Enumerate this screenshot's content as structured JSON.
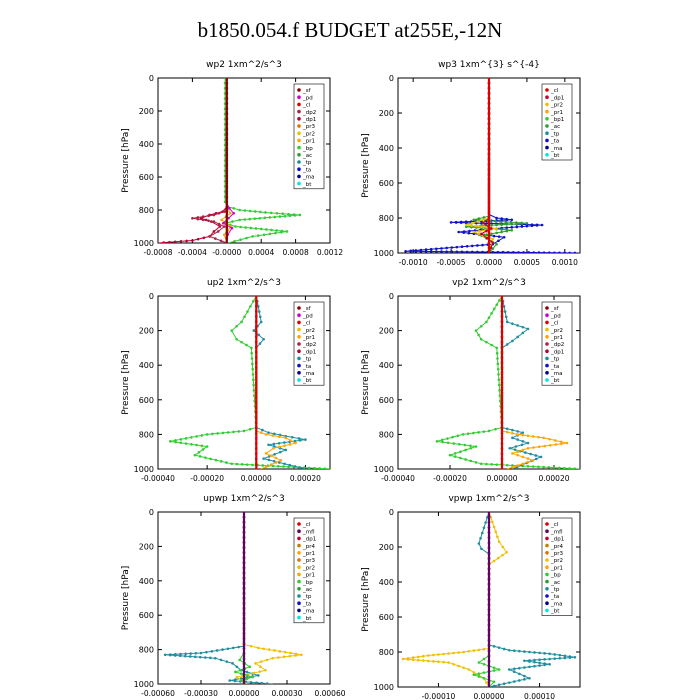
{
  "page_title": "b1850.054.f  BUDGET at255E,-12N",
  "colors": {
    "sf": "#8b0000",
    "pd": "#cc00cc",
    "cl": "#dd0000",
    "dp2": "#aa2244",
    "dp1": "#bb0033",
    "dp4": "#990033",
    "mfl": "#660066",
    "pr1": "#ffa500",
    "pr2": "#f0c000",
    "pr3": "#e07000",
    "pr4": "#c08000",
    "bp": "#33cc33",
    "ac": "#2aa02a",
    "tp": "#1f8fa0",
    "ta": "#1010cc",
    "ma": "#000088",
    "bt": "#00e5e5"
  },
  "chart_data": [
    {
      "type": "line",
      "title": "wp2   1xm^2/s^3",
      "ylabel": "Pressure  [hPa]",
      "ylim": [
        1000,
        0
      ],
      "xlim": [
        -0.0008,
        0.0012
      ],
      "xticks": [
        "-0.0008",
        "-0.0004",
        "-0.0000",
        "0.0004",
        "0.0008",
        "0.0012"
      ],
      "yticks": [
        "0",
        "200",
        "400",
        "600",
        "800",
        "1000"
      ],
      "legend": [
        "_sf",
        "_pd",
        "_cl",
        "_dp2",
        "_dp1",
        "_pr3",
        "_pr2",
        "_pr1",
        "_bp",
        "_ac",
        "_tp",
        "_ta",
        "_ma",
        "_bt"
      ],
      "legend_position": "top-right",
      "series": [
        {
          "name": "_bp",
          "color": "bp",
          "x": [
            -2e-05,
            -2e-05,
            1e-05,
            0.00015,
            0.00045,
            0.00085,
            0.0005,
            0.00015,
            -2e-05,
            0.0001,
            0.0007,
            0.0003,
            2e-05
          ],
          "y": [
            0,
            750,
            780,
            800,
            815,
            830,
            845,
            860,
            880,
            900,
            930,
            960,
            1000
          ]
        },
        {
          "name": "_dp1",
          "color": "dp1",
          "x": [
            0,
            0,
            -5e-05,
            -0.0002,
            -0.0003,
            -0.00018,
            -8e-05,
            -0.00015,
            -0.0002,
            -0.0004,
            -0.0008
          ],
          "y": [
            0,
            780,
            810,
            830,
            850,
            870,
            900,
            930,
            960,
            985,
            1000
          ]
        },
        {
          "name": "_dp2",
          "color": "dp2",
          "x": [
            0,
            0,
            -3e-05,
            -0.00015,
            -0.0004,
            -0.00015,
            -3e-05,
            -0.0001,
            -0.0002,
            0
          ],
          "y": [
            0,
            790,
            810,
            830,
            850,
            870,
            900,
            930,
            960,
            1000
          ]
        },
        {
          "name": "_pr1",
          "color": "pr1",
          "x": [
            0,
            0,
            4e-05,
            -6e-05,
            5e-05,
            -3e-05,
            0
          ],
          "y": [
            0,
            780,
            820,
            860,
            900,
            950,
            1000
          ]
        },
        {
          "name": "_pd",
          "color": "pd",
          "x": [
            0,
            0,
            3e-05,
            8e-05,
            2e-05,
            -4e-05,
            6e-05,
            1e-05,
            0
          ],
          "y": [
            0,
            760,
            790,
            820,
            850,
            880,
            910,
            950,
            1000
          ]
        },
        {
          "name": "_sf",
          "color": "sf",
          "x": [
            0,
            0,
            0
          ],
          "y": [
            0,
            500,
            1000
          ]
        }
      ]
    },
    {
      "type": "line",
      "title": "wp3   1xm^{3} s^{-4}",
      "ylabel": "Pressure  [hPa]",
      "ylim": [
        1000,
        0
      ],
      "xlim": [
        -0.0012,
        0.0012
      ],
      "xticks": [
        "-0.0010",
        "-0.0005",
        "0.0000",
        "0.0005",
        "0.0010"
      ],
      "yticks": [
        "0",
        "200",
        "400",
        "600",
        "800",
        "1000"
      ],
      "legend": [
        "_cl",
        "_dp1",
        "_pr2",
        "_pr1",
        "_bp1",
        "_ac",
        "_tp",
        "_ta",
        "_ma",
        "_bt"
      ],
      "legend_position": "top-right",
      "series": [
        {
          "name": "_ta",
          "color": "ta",
          "x": [
            0,
            0,
            0.0001,
            0.0003,
            -0.0005,
            0.0007,
            0.0001,
            -0.0004,
            0.0002,
            5e-05,
            -0.0011,
            0.0012
          ],
          "y": [
            0,
            780,
            800,
            810,
            825,
            840,
            860,
            880,
            910,
            950,
            990,
            1000
          ]
        },
        {
          "name": "_ac",
          "color": "ac",
          "x": [
            0,
            0,
            -0.0002,
            0.0005,
            -0.0003,
            0.0003,
            -0.0001,
            0.0001,
            0
          ],
          "y": [
            0,
            790,
            810,
            830,
            850,
            870,
            900,
            950,
            1000
          ]
        },
        {
          "name": "_pr2",
          "color": "pr2",
          "x": [
            0,
            0,
            -0.00015,
            -0.0003,
            0.0001,
            -0.0002,
            5e-05,
            0
          ],
          "y": [
            0,
            800,
            820,
            840,
            860,
            880,
            920,
            1000
          ]
        },
        {
          "name": "_dp1",
          "color": "dp1",
          "x": [
            0,
            0,
            -8e-05,
            3e-05,
            -0.0001,
            5e-05,
            0
          ],
          "y": [
            0,
            800,
            830,
            860,
            890,
            940,
            1000
          ]
        },
        {
          "name": "_cl",
          "color": "cl",
          "x": [
            0,
            0,
            0
          ],
          "y": [
            0,
            500,
            1000
          ]
        }
      ]
    },
    {
      "type": "line",
      "title": "up2   1xm^2/s^3",
      "ylabel": "Pressure  [hPa]",
      "ylim": [
        1000,
        0
      ],
      "xlim": [
        -0.0004,
        0.0003
      ],
      "xticks": [
        "-0.00040",
        "-0.00020",
        "0.00000",
        "0.00020"
      ],
      "yticks": [
        "0",
        "200",
        "400",
        "600",
        "800",
        "1000"
      ],
      "legend": [
        "_sf",
        "_pd",
        "_cl",
        "_pr2",
        "_pr1",
        "_dp2",
        "_dp1",
        "_tp",
        "_ta",
        "_ma",
        "_bt"
      ],
      "legend_position": "top-right",
      "series": [
        {
          "name": "_dp1",
          "color": "bp",
          "x": [
            0,
            -6e-05,
            -0.0001,
            -8e-05,
            -2e-05,
            0,
            -5e-05,
            -0.0002,
            -0.00035,
            -0.0002,
            -0.00025,
            -0.0001,
            0.0003
          ],
          "y": [
            0,
            150,
            200,
            250,
            300,
            760,
            780,
            800,
            840,
            870,
            920,
            970,
            1000
          ]
        },
        {
          "name": "_tp",
          "color": "tp",
          "x": [
            0,
            2e-05,
            -1e-05,
            3e-05,
            0,
            0,
            5e-05,
            0.00012,
            0.0002,
            5e-05,
            0.00012,
            3e-05,
            0.0002
          ],
          "y": [
            0,
            150,
            200,
            250,
            300,
            760,
            790,
            810,
            830,
            860,
            890,
            940,
            1000
          ]
        },
        {
          "name": "_pr1",
          "color": "pr1",
          "x": [
            0,
            0,
            4e-05,
            0.00012,
            0.00016,
            7e-05,
            4e-05,
            0.0001,
            2e-05
          ],
          "y": [
            0,
            780,
            800,
            820,
            850,
            880,
            910,
            950,
            1000
          ]
        },
        {
          "name": "_cl",
          "color": "cl",
          "x": [
            0,
            0,
            0
          ],
          "y": [
            0,
            500,
            1000
          ]
        }
      ]
    },
    {
      "type": "line",
      "title": "vp2   1xm^2/s^3",
      "ylabel": "Pressure  [hPa]",
      "ylim": [
        1000,
        0
      ],
      "xlim": [
        -0.0004,
        0.0003
      ],
      "xticks": [
        "-0.00040",
        "-0.00020",
        "0.00000",
        "0.00020"
      ],
      "yticks": [
        "0",
        "200",
        "400",
        "600",
        "800",
        "1000"
      ],
      "legend": [
        "_sf",
        "_pd",
        "_cl",
        "_pr2",
        "_pr1",
        "_dp2",
        "_dp1",
        "_tp",
        "_ta",
        "_ma",
        "_bt"
      ],
      "legend_position": "top-right",
      "series": [
        {
          "name": "_dp1",
          "color": "bp",
          "x": [
            0,
            -6e-05,
            -0.0001,
            -8e-05,
            -2e-05,
            0,
            -5e-05,
            -0.00015,
            -0.00025,
            -0.0001,
            -0.0002,
            -8e-05,
            0.0003
          ],
          "y": [
            0,
            150,
            200,
            250,
            300,
            760,
            780,
            800,
            840,
            870,
            920,
            970,
            1000
          ]
        },
        {
          "name": "_tp",
          "color": "tp",
          "x": [
            0,
            2e-05,
            0.0001,
            4e-05,
            0,
            0,
            8e-05,
            4e-05,
            0.0001,
            3e-05,
            0.00015,
            4e-05
          ],
          "y": [
            0,
            150,
            190,
            260,
            300,
            760,
            790,
            820,
            850,
            880,
            930,
            1000
          ]
        },
        {
          "name": "_pr1",
          "color": "pr1",
          "x": [
            0,
            0,
            6e-05,
            0.00016,
            0.00025,
            0.0001,
            4e-05,
            0.00012,
            2e-05
          ],
          "y": [
            0,
            780,
            800,
            820,
            850,
            880,
            910,
            950,
            1000
          ]
        },
        {
          "name": "_cl",
          "color": "cl",
          "x": [
            0,
            0,
            0
          ],
          "y": [
            0,
            500,
            1000
          ]
        }
      ]
    },
    {
      "type": "line",
      "title": "upwp   1xm^2/s^3",
      "ylabel": "Pressure  [hPa]",
      "ylim": [
        1000,
        0
      ],
      "xlim": [
        -0.0006,
        0.0006
      ],
      "xticks": [
        "-0.00060",
        "-0.00030",
        "0.00000",
        "0.00030",
        "0.00060"
      ],
      "yticks": [
        "0",
        "200",
        "400",
        "600",
        "800",
        "1000"
      ],
      "legend": [
        "_cl",
        "_mfl",
        "_dp1",
        "_pr4",
        "_pr1",
        "_pr3",
        "_pr2",
        "_pr1",
        "_bp",
        "_ac",
        "_tp",
        "_ta",
        "_ma",
        "_bt"
      ],
      "legend_position": "top-right",
      "series": [
        {
          "name": "_tp",
          "color": "tp",
          "x": [
            0,
            0,
            -0.00015,
            -0.0003,
            -0.00055,
            -0.0002,
            -8e-05,
            -2e-05,
            0.0001,
            -0.0001,
            0.0002
          ],
          "y": [
            0,
            780,
            800,
            820,
            830,
            850,
            880,
            920,
            950,
            980,
            1000
          ]
        },
        {
          "name": "_pr2",
          "color": "pr2",
          "x": [
            0,
            0,
            0.0001,
            0.00025,
            0.0004,
            0.0002,
            8e-05,
            0.00015,
            -5e-05,
            2e-05
          ],
          "y": [
            0,
            770,
            790,
            810,
            830,
            850,
            880,
            920,
            960,
            1000
          ]
        },
        {
          "name": "_bp",
          "color": "bp",
          "x": [
            0,
            0,
            -3e-05,
            4e-05,
            -6e-05,
            6e-05,
            -2e-05,
            1e-05
          ],
          "y": [
            0,
            820,
            860,
            900,
            930,
            960,
            980,
            1000
          ]
        },
        {
          "name": "_cl",
          "color": "mfl",
          "x": [
            0,
            0,
            0
          ],
          "y": [
            0,
            500,
            1000
          ]
        }
      ]
    },
    {
      "type": "line",
      "title": "vpwp   1xm^2/s^3",
      "ylabel": "Pressure  [hPa]",
      "ylim": [
        1000,
        0
      ],
      "xlim": [
        -0.00018,
        0.00018
      ],
      "xticks": [
        "-0.00010",
        "0.00000",
        "0.00010"
      ],
      "yticks": [
        "0",
        "200",
        "400",
        "600",
        "800",
        "1000"
      ],
      "legend": [
        "_cl",
        "_mfl",
        "_dp1",
        "_pr4",
        "_pr3",
        "_pr2",
        "_pr1",
        "_bp",
        "_ac",
        "_tp",
        "_ta",
        "_ma",
        "_bt"
      ],
      "legend_position": "top-right",
      "series": [
        {
          "name": "_tp",
          "color": "tp",
          "x": [
            0,
            -2e-05,
            -1.5e-05,
            0,
            0,
            4e-05,
            0.00012,
            0.00017,
            7e-05,
            0.00012,
            4e-05,
            8e-05,
            0
          ],
          "y": [
            0,
            180,
            210,
            240,
            760,
            790,
            810,
            830,
            850,
            870,
            900,
            950,
            1000
          ]
        },
        {
          "name": "_pr2",
          "color": "pr2",
          "x": [
            0,
            2e-05,
            3.5e-05,
            1e-05,
            0,
            0,
            -5e-05,
            -0.00012,
            -0.00017,
            -8e-05,
            -4e-05,
            -1e-05,
            0
          ],
          "y": [
            0,
            170,
            230,
            280,
            300,
            780,
            800,
            820,
            840,
            860,
            900,
            950,
            1000
          ]
        },
        {
          "name": "_bp",
          "color": "bp",
          "x": [
            0,
            0,
            -2e-05,
            2e-05,
            -3e-05,
            1e-05,
            0
          ],
          "y": [
            0,
            820,
            860,
            900,
            930,
            970,
            1000
          ]
        },
        {
          "name": "_cl",
          "color": "mfl",
          "x": [
            0,
            0,
            0
          ],
          "y": [
            0,
            500,
            1000
          ]
        }
      ]
    }
  ]
}
